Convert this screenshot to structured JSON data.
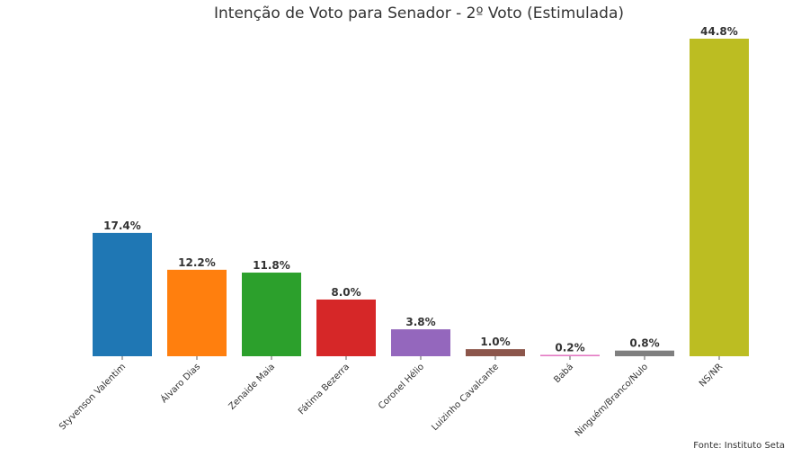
{
  "chart_data": {
    "type": "bar",
    "title": "Intenção de Voto para Senador - 2º Voto (Estimulada)",
    "categories": [
      "Styvenson Valentim",
      "Álvaro Dias",
      "Zenaide Maia",
      "Fátima Bezerra",
      "Coronel Hélio",
      "Luizinho Cavalcante",
      "Babá",
      "Ninguém/Branco/Nulo",
      "NS/NR"
    ],
    "values": [
      17.4,
      12.2,
      11.8,
      8.0,
      3.8,
      1.0,
      0.2,
      0.8,
      44.8
    ],
    "value_labels": [
      "17.4%",
      "12.2%",
      "11.8%",
      "8.0%",
      "3.8%",
      "1.0%",
      "0.2%",
      "0.8%",
      "44.8%"
    ],
    "colors": [
      "#1f77b4",
      "#ff7f0e",
      "#2ca02c",
      "#d62728",
      "#9467bd",
      "#8c564b",
      "#e377c2",
      "#7f7f7f",
      "#bcbd22"
    ],
    "xlabel": "",
    "ylabel": "",
    "ylim": [
      0,
      45
    ],
    "grid": false,
    "source": "Fonte: Instituto Seta"
  }
}
